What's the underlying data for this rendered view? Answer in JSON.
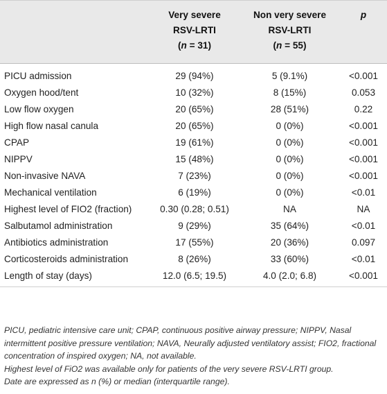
{
  "table": {
    "headers": {
      "col2_line1": "Very severe",
      "col2_line2": "RSV-LRTI",
      "col2_n_prefix": "(",
      "col2_n_label": "n",
      "col2_n_value": " = 31)",
      "col3_line1": "Non very severe",
      "col3_line2": "RSV-LRTI",
      "col3_n_prefix": "(",
      "col3_n_label": "n",
      "col3_n_value": " = 55)",
      "col4": "p"
    },
    "rows": [
      {
        "label": "PICU admission",
        "very_severe": "29 (94%)",
        "non_very_severe": "5 (9.1%)",
        "p": "<0.001"
      },
      {
        "label": "Oxygen hood/tent",
        "very_severe": "10 (32%)",
        "non_very_severe": "8 (15%)",
        "p": "0.053"
      },
      {
        "label": "Low flow oxygen",
        "very_severe": "20 (65%)",
        "non_very_severe": "28 (51%)",
        "p": "0.22"
      },
      {
        "label": "High flow nasal canula",
        "very_severe": "20 (65%)",
        "non_very_severe": "0 (0%)",
        "p": "<0.001"
      },
      {
        "label": "CPAP",
        "very_severe": "19 (61%)",
        "non_very_severe": "0 (0%)",
        "p": "<0.001"
      },
      {
        "label": "NIPPV",
        "very_severe": "15 (48%)",
        "non_very_severe": "0 (0%)",
        "p": "<0.001"
      },
      {
        "label": "Non-invasive NAVA",
        "very_severe": "7 (23%)",
        "non_very_severe": "0 (0%)",
        "p": "<0.001"
      },
      {
        "label": "Mechanical ventilation",
        "very_severe": "6 (19%)",
        "non_very_severe": "0 (0%)",
        "p": "<0.01"
      },
      {
        "label": "Highest level of FIO2 (fraction)",
        "very_severe": "0.30 (0.28; 0.51)",
        "non_very_severe": "NA",
        "p": "NA"
      },
      {
        "label": "Salbutamol administration",
        "very_severe": "9 (29%)",
        "non_very_severe": "35 (64%)",
        "p": "<0.01"
      },
      {
        "label": "Antibiotics administration",
        "very_severe": "17 (55%)",
        "non_very_severe": "20 (36%)",
        "p": "0.097"
      },
      {
        "label": "Corticosteroids administration",
        "very_severe": "8 (26%)",
        "non_very_severe": "33 (60%)",
        "p": "<0.01"
      },
      {
        "label": "Length of stay (days)",
        "very_severe": "12.0 (6.5; 19.5)",
        "non_very_severe": "4.0 (2.0; 6.8)",
        "p": "<0.001"
      }
    ]
  },
  "footnotes": {
    "abbreviations": "PICU, pediatric intensive care unit; CPAP, continuous positive airway pressure; NIPPV, Nasal intermittent positive pressure ventilation; NAVA, Neurally adjusted ventilatory assist; FIO2, fractional concentration of inspired oxygen; NA, not available.",
    "fio2_note": "Highest level of FiO2 was available only for patients of the very severe RSV-LRTI group.",
    "data_note": "Date are expressed as n (%) or median (interquartile range)."
  }
}
